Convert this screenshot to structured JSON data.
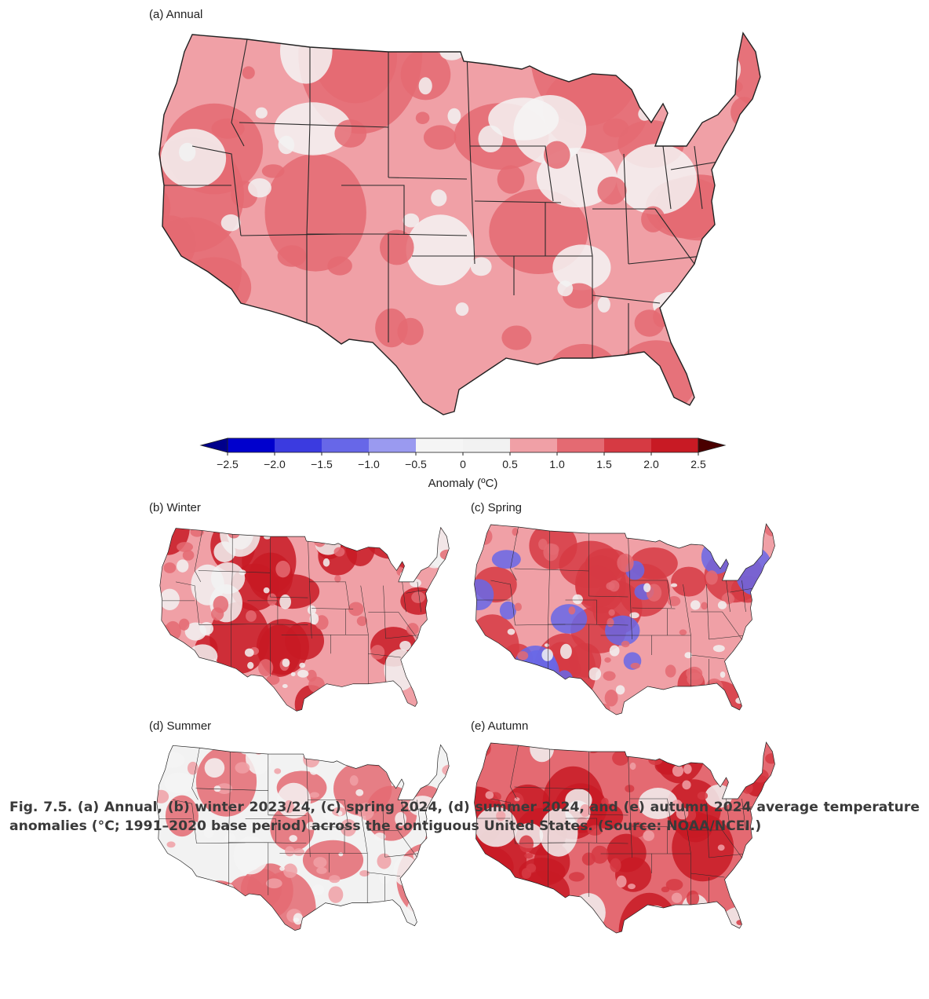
{
  "figure": {
    "panels": [
      {
        "id": "annual",
        "label": "(a) Annual",
        "dominant_bin": 6,
        "hot_bin": 7,
        "cool_bin": 4
      },
      {
        "id": "winter",
        "label": "(b) Winter",
        "dominant_bin": 6,
        "hot_bin": 9,
        "cool_bin": 5
      },
      {
        "id": "spring",
        "label": "(c) Spring",
        "dominant_bin": 6,
        "hot_bin": 8,
        "cool_bin": 2
      },
      {
        "id": "summer",
        "label": "(d) Summer",
        "dominant_bin": 5,
        "hot_bin": 7,
        "cool_bin": 4
      },
      {
        "id": "autumn",
        "label": "(e) Autumn",
        "dominant_bin": 7,
        "hot_bin": 9,
        "cool_bin": 5
      }
    ],
    "colorbar": {
      "label": "Anomaly (ºC)",
      "ticks": [
        "−2.5",
        "−2.0",
        "−1.5",
        "−1.0",
        "−0.5",
        "0",
        "0.5",
        "1.0",
        "1.5",
        "2.0",
        "2.5"
      ],
      "bins": [
        "#0000cd",
        "#3b3be0",
        "#6767e8",
        "#9a9af0",
        "#f5f5f5",
        "#f2f2f2",
        "#f0a0a6",
        "#e46a72",
        "#d63a43",
        "#c81a24",
        "#5c0000"
      ],
      "under_color": "#00008b",
      "over_color": "#4a0000"
    },
    "caption": "Fig. 7.5. (a) Annual, (b) winter 2023/24, (c) spring 2024, (d) summer 2024, and (e) autumn 2024 average temperature anomalies (°C; 1991–2020 base period) across the contiguous United States. (Source: NOAA/NCEI.)"
  }
}
